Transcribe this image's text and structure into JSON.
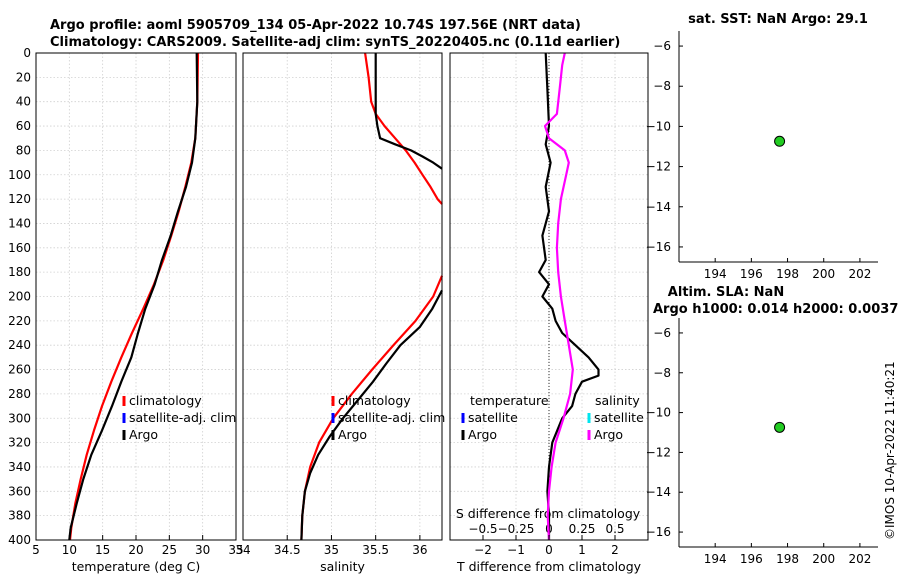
{
  "titles": {
    "line1": "Argo profile: aoml 5905709_134 05-Apr-2022 10.74S 197.56E (NRT data)",
    "line2": "Climatology: CARS2009. Satellite-adj clim: synTS_20220405.nc (0.11d earlier)",
    "sst": "sat. SST: NaN Argo: 29.1",
    "sla1": "Altim. SLA: NaN",
    "sla2": "Argo h1000: 0.014 h2000: 0.0037",
    "timestamp": "©IMOS 10-Apr-2022 11:40:21"
  },
  "colors": {
    "climatology": "#ff0000",
    "satellite": "#0000ff",
    "argo": "#000000",
    "sat_salinity": "#00e5ee",
    "argo_salinity": "#ff00ff",
    "marker": "#22cc22"
  },
  "legends": {
    "temperature": [
      "climatology",
      "satellite-adj. clim",
      "Argo"
    ],
    "salinity": [
      "climatology",
      "satellite-adj. clim",
      "Argo"
    ],
    "diff_t_title": "temperature",
    "diff_t": [
      "satellite",
      "Argo"
    ],
    "diff_s_title": "salinity",
    "diff_s": [
      "satellite",
      "Argo"
    ]
  },
  "chart_data": [
    {
      "type": "line",
      "name": "temperature",
      "xlabel": "temperature (deg C)",
      "xlim": [
        5,
        35
      ],
      "ylim": [
        0,
        400
      ],
      "xticks": [
        5,
        10,
        15,
        20,
        25,
        30,
        35
      ],
      "yticks": [
        0,
        20,
        40,
        60,
        80,
        100,
        120,
        140,
        160,
        180,
        200,
        220,
        240,
        260,
        280,
        300,
        320,
        340,
        360,
        380,
        400
      ],
      "series": [
        {
          "name": "climatology",
          "depth": [
            0,
            40,
            70,
            90,
            110,
            130,
            150,
            170,
            190,
            210,
            230,
            250,
            270,
            290,
            310,
            330,
            350,
            370,
            390,
            400
          ],
          "values": [
            29.3,
            29.2,
            28.9,
            28.3,
            27.4,
            26.4,
            25.3,
            24.1,
            22.7,
            21.1,
            19.4,
            17.8,
            16.3,
            14.9,
            13.7,
            12.6,
            11.7,
            10.9,
            10.3,
            10.1
          ]
        },
        {
          "name": "Argo",
          "depth": [
            0,
            40,
            70,
            90,
            110,
            130,
            150,
            170,
            190,
            210,
            230,
            250,
            270,
            290,
            310,
            330,
            350,
            370,
            390,
            400
          ],
          "values": [
            29.1,
            29.2,
            28.9,
            28.4,
            27.5,
            26.3,
            25.2,
            23.9,
            22.8,
            21.4,
            20.3,
            19.3,
            17.8,
            16.4,
            14.9,
            13.3,
            12.1,
            11.1,
            10.2,
            10.0
          ]
        }
      ]
    },
    {
      "type": "line",
      "name": "salinity",
      "xlabel": "salinity",
      "xlim": [
        34,
        36.25
      ],
      "ylim": [
        0,
        400
      ],
      "xticks": [
        34,
        34.5,
        35,
        35.5,
        36
      ],
      "series": [
        {
          "name": "climatology",
          "depth": [
            0,
            20,
            40,
            50,
            60,
            70,
            80,
            90,
            100,
            110,
            120,
            124
          ],
          "values": [
            35.38,
            35.42,
            35.45,
            35.5,
            35.6,
            35.72,
            35.84,
            35.94,
            36.03,
            36.12,
            36.2,
            36.25
          ]
        },
        {
          "name": "climatology_deep",
          "depth": [
            183,
            200,
            220,
            240,
            260,
            280,
            300,
            320,
            340,
            360,
            380,
            400
          ],
          "values": [
            36.25,
            36.15,
            35.95,
            35.7,
            35.46,
            35.23,
            35.02,
            34.86,
            34.76,
            34.7,
            34.67,
            34.66
          ]
        },
        {
          "name": "Argo",
          "depth": [
            0,
            30,
            50,
            60,
            70,
            75,
            80,
            85,
            90,
            95
          ],
          "values": [
            35.5,
            35.5,
            35.5,
            35.52,
            35.55,
            35.72,
            35.9,
            36.03,
            36.15,
            36.25
          ]
        },
        {
          "name": "Argo_deep",
          "depth": [
            195,
            210,
            225,
            240,
            255,
            270,
            285,
            300,
            315,
            330,
            345,
            360,
            380,
            400
          ],
          "values": [
            36.25,
            36.14,
            36.0,
            35.78,
            35.62,
            35.47,
            35.3,
            35.13,
            34.98,
            34.85,
            34.76,
            34.7,
            34.67,
            34.66
          ]
        }
      ]
    },
    {
      "type": "line",
      "name": "difference",
      "xlabel": "T difference from climatology",
      "xlim": [
        -3,
        3
      ],
      "xticks": [
        -2,
        -1,
        0,
        1,
        2
      ],
      "s_axis_label": "S difference from climatology",
      "s_xlim": [
        -0.75,
        0.75
      ],
      "s_xticks": [
        -0.5,
        -0.25,
        0,
        0.25,
        0.5
      ],
      "series": [
        {
          "name": "temperature Argo",
          "depth": [
            0,
            30,
            60,
            75,
            90,
            110,
            130,
            150,
            170,
            180,
            190,
            200,
            210,
            220,
            230,
            240,
            250,
            260,
            265,
            270,
            280,
            290,
            300,
            320,
            340,
            360,
            380,
            400
          ],
          "values": [
            -0.1,
            -0.05,
            0.0,
            -0.1,
            0.05,
            -0.1,
            0.0,
            -0.2,
            -0.1,
            -0.3,
            0.0,
            -0.2,
            0.1,
            0.2,
            0.4,
            0.8,
            1.2,
            1.5,
            1.5,
            1.0,
            0.8,
            0.7,
            0.4,
            0.1,
            0.0,
            -0.05,
            0.0,
            0.0
          ]
        },
        {
          "name": "salinity Argo",
          "depth": [
            0,
            10,
            30,
            50,
            60,
            70,
            80,
            90,
            100,
            120,
            140,
            160,
            180,
            200,
            220,
            240,
            260,
            280,
            300,
            320,
            340,
            360,
            380,
            400
          ],
          "values": [
            0.12,
            0.1,
            0.08,
            0.06,
            -0.03,
            0.0,
            0.12,
            0.15,
            0.13,
            0.09,
            0.07,
            0.06,
            0.07,
            0.09,
            0.12,
            0.15,
            0.18,
            0.16,
            0.11,
            0.05,
            0.02,
            0.0,
            -0.01,
            0.0
          ]
        }
      ]
    },
    {
      "type": "scatter",
      "name": "SST map",
      "xlim": [
        192,
        203
      ],
      "ylim": [
        -16.75,
        -5.25
      ],
      "xticks": [
        194,
        196,
        198,
        200,
        202
      ],
      "yticks": [
        -6,
        -8,
        -10,
        -12,
        -14,
        -16
      ],
      "points": [
        {
          "x": 197.56,
          "y": -10.74
        }
      ]
    },
    {
      "type": "scatter",
      "name": "SLA map",
      "xlim": [
        192,
        203
      ],
      "ylim": [
        -16.75,
        -5.25
      ],
      "xticks": [
        194,
        196,
        198,
        200,
        202
      ],
      "yticks": [
        -6,
        -8,
        -10,
        -12,
        -14,
        -16
      ],
      "points": [
        {
          "x": 197.56,
          "y": -10.74
        }
      ]
    }
  ]
}
